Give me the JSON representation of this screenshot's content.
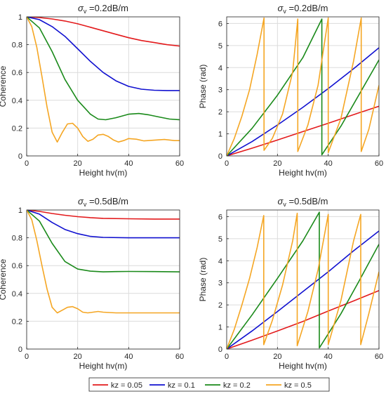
{
  "legend": [
    {
      "label": "kz = 0.05",
      "color": "#e31a1c"
    },
    {
      "label": "kz = 0.1",
      "color": "#1010d0"
    },
    {
      "label": "kz = 0.2",
      "color": "#1a8a1a"
    },
    {
      "label": "kz = 0.5",
      "color": "#f5a623"
    }
  ],
  "chart_data": [
    {
      "type": "line",
      "title": "σv =0.2dB/m",
      "title_symbol": "σ",
      "title_subscript": "v",
      "title_rest": " =0.2dB/m",
      "xlabel": "Height hv(m)",
      "ylabel": "Coherence",
      "xlim": [
        0,
        60
      ],
      "ylim": [
        0,
        1
      ],
      "xticks": [
        "0",
        "20",
        "40",
        "60"
      ],
      "yticks": [
        "0",
        "0.2",
        "0.4",
        "0.6",
        "0.8",
        "1"
      ],
      "grid": true,
      "series": [
        {
          "name": "kz = 0.05",
          "color": "#e31a1c",
          "x": [
            0,
            5,
            10,
            15,
            20,
            25,
            30,
            35,
            40,
            45,
            50,
            55,
            60
          ],
          "y": [
            1,
            0.995,
            0.985,
            0.97,
            0.95,
            0.925,
            0.9,
            0.875,
            0.85,
            0.83,
            0.815,
            0.8,
            0.79
          ]
        },
        {
          "name": "kz = 0.1",
          "color": "#1010d0",
          "x": [
            0,
            5,
            10,
            15,
            20,
            25,
            30,
            35,
            40,
            45,
            50,
            55,
            60
          ],
          "y": [
            1,
            0.98,
            0.93,
            0.86,
            0.77,
            0.68,
            0.6,
            0.54,
            0.5,
            0.48,
            0.472,
            0.47,
            0.47
          ]
        },
        {
          "name": "kz = 0.2",
          "color": "#1a8a1a",
          "x": [
            0,
            5,
            10,
            15,
            20,
            25,
            28,
            31,
            35,
            40,
            44,
            48,
            52,
            56,
            60
          ],
          "y": [
            1,
            0.92,
            0.75,
            0.55,
            0.4,
            0.3,
            0.265,
            0.26,
            0.275,
            0.3,
            0.305,
            0.295,
            0.28,
            0.265,
            0.26
          ]
        },
        {
          "name": "kz = 0.5",
          "color": "#f5a623",
          "x": [
            0,
            2,
            4,
            6,
            8,
            10,
            12,
            14,
            16,
            18,
            20,
            22,
            24,
            26,
            28,
            30,
            32,
            34,
            36,
            38,
            40,
            43,
            46,
            50,
            54,
            58,
            60
          ],
          "y": [
            1,
            0.93,
            0.78,
            0.57,
            0.35,
            0.17,
            0.1,
            0.17,
            0.23,
            0.235,
            0.2,
            0.14,
            0.105,
            0.12,
            0.15,
            0.155,
            0.14,
            0.115,
            0.1,
            0.11,
            0.125,
            0.12,
            0.108,
            0.113,
            0.118,
            0.11,
            0.11
          ]
        }
      ]
    },
    {
      "type": "line",
      "title": "σv =0.2dB/m",
      "title_symbol": "σ",
      "title_subscript": "v",
      "title_rest": " =0.2dB/m",
      "xlabel": "Height hv(m)",
      "ylabel": "Phase (rad)",
      "xlim": [
        0,
        60
      ],
      "ylim": [
        0,
        6.3
      ],
      "xticks": [
        "0",
        "20",
        "40",
        "60"
      ],
      "yticks": [
        "0",
        "1",
        "2",
        "3",
        "4",
        "5",
        "6"
      ],
      "grid": true,
      "series": [
        {
          "name": "kz = 0.05",
          "color": "#e31a1c",
          "x": [
            0,
            10,
            20,
            30,
            40,
            50,
            60
          ],
          "y": [
            0,
            0.35,
            0.72,
            1.1,
            1.48,
            1.87,
            2.25
          ]
        },
        {
          "name": "kz = 0.1",
          "color": "#1010d0",
          "x": [
            0,
            10,
            20,
            30,
            40,
            50,
            60
          ],
          "y": [
            0,
            0.65,
            1.4,
            2.2,
            3.05,
            3.95,
            4.9
          ]
        },
        {
          "name": "kz = 0.2",
          "color": "#1a8a1a",
          "x": [
            0,
            10,
            20,
            30,
            37.5,
            37.5,
            45,
            52,
            60
          ],
          "y": [
            0,
            1.25,
            2.75,
            4.45,
            6.2,
            0.05,
            1.35,
            2.75,
            4.35
          ]
        },
        {
          "name": "kz = 0.5",
          "color": "#f5a623",
          "x": [
            0,
            3,
            6,
            9,
            12,
            14.7,
            14.7,
            18,
            22,
            26,
            28,
            28,
            32,
            36,
            40,
            40,
            45,
            50,
            53,
            53,
            56,
            60
          ],
          "y": [
            0,
            0.8,
            1.8,
            3,
            4.6,
            6.25,
            0.25,
            0.8,
            1.9,
            3.8,
            6.2,
            0.2,
            1.4,
            3.2,
            6.25,
            0.15,
            1.7,
            4.3,
            6.25,
            0.2,
            1.2,
            3.2
          ]
        }
      ]
    },
    {
      "type": "line",
      "title": "σv =0.5dB/m",
      "title_symbol": "σ",
      "title_subscript": "v",
      "title_rest": " =0.5dB/m",
      "xlabel": "Height hv(m)",
      "ylabel": "Coherence",
      "xlim": [
        0,
        60
      ],
      "ylim": [
        0,
        1
      ],
      "xticks": [
        "0",
        "20",
        "40",
        "60"
      ],
      "yticks": [
        "0",
        "0.2",
        "0.4",
        "0.6",
        "0.8",
        "1"
      ],
      "grid": true,
      "series": [
        {
          "name": "kz = 0.05",
          "color": "#e31a1c",
          "x": [
            0,
            5,
            10,
            15,
            20,
            25,
            30,
            40,
            50,
            60
          ],
          "y": [
            1,
            0.99,
            0.975,
            0.962,
            0.952,
            0.945,
            0.94,
            0.937,
            0.935,
            0.935
          ]
        },
        {
          "name": "kz = 0.1",
          "color": "#1010d0",
          "x": [
            0,
            5,
            10,
            15,
            20,
            25,
            30,
            40,
            50,
            60
          ],
          "y": [
            1,
            0.97,
            0.91,
            0.86,
            0.83,
            0.81,
            0.803,
            0.8,
            0.8,
            0.8
          ]
        },
        {
          "name": "kz = 0.2",
          "color": "#1a8a1a",
          "x": [
            0,
            5,
            10,
            15,
            20,
            25,
            30,
            35,
            40,
            50,
            60
          ],
          "y": [
            1,
            0.92,
            0.76,
            0.63,
            0.575,
            0.56,
            0.555,
            0.557,
            0.558,
            0.557,
            0.555
          ]
        },
        {
          "name": "kz = 0.5",
          "color": "#f5a623",
          "x": [
            0,
            2,
            4,
            6,
            8,
            10,
            12,
            14,
            16,
            18,
            20,
            22,
            24,
            26,
            28,
            30,
            35,
            40,
            50,
            60
          ],
          "y": [
            1,
            0.93,
            0.78,
            0.6,
            0.43,
            0.3,
            0.26,
            0.28,
            0.3,
            0.305,
            0.29,
            0.265,
            0.26,
            0.265,
            0.27,
            0.265,
            0.26,
            0.26,
            0.26,
            0.26
          ]
        }
      ]
    },
    {
      "type": "line",
      "title": "σv =0.5dB/m",
      "title_symbol": "σ",
      "title_subscript": "v",
      "title_rest": " =0.5dB/m",
      "xlabel": "Height hv(m)",
      "ylabel": "Phase (rad)",
      "xlim": [
        0,
        60
      ],
      "ylim": [
        0,
        6.3
      ],
      "xticks": [
        "0",
        "20",
        "40",
        "60"
      ],
      "yticks": [
        "0",
        "1",
        "2",
        "3",
        "4",
        "5",
        "6"
      ],
      "grid": true,
      "series": [
        {
          "name": "kz = 0.05",
          "color": "#e31a1c",
          "x": [
            0,
            10,
            20,
            30,
            40,
            50,
            60
          ],
          "y": [
            0,
            0.4,
            0.82,
            1.25,
            1.72,
            2.18,
            2.65
          ]
        },
        {
          "name": "kz = 0.1",
          "color": "#1010d0",
          "x": [
            0,
            10,
            20,
            30,
            40,
            50,
            60
          ],
          "y": [
            0,
            0.82,
            1.7,
            2.6,
            3.5,
            4.45,
            5.35
          ]
        },
        {
          "name": "kz = 0.2",
          "color": "#1a8a1a",
          "x": [
            0,
            10,
            20,
            30,
            36.5,
            36.5,
            45,
            52,
            60
          ],
          "y": [
            0,
            1.55,
            3.2,
            4.9,
            6.2,
            0.05,
            1.6,
            3.05,
            4.75
          ]
        },
        {
          "name": "kz = 0.5",
          "color": "#f5a623",
          "x": [
            0,
            3,
            6,
            9,
            12,
            14.6,
            14.6,
            18,
            22,
            26,
            27.8,
            27.8,
            32,
            36,
            40,
            40,
            45,
            50,
            52.8,
            52.8,
            56,
            60
          ],
          "y": [
            0,
            0.9,
            2,
            3.2,
            4.6,
            6.05,
            0.2,
            1.3,
            2.9,
            4.9,
            6.15,
            0.15,
            1.7,
            3.6,
            6.1,
            0.2,
            2.2,
            4.9,
            6.1,
            0.2,
            1.6,
            3.5
          ]
        }
      ]
    }
  ]
}
